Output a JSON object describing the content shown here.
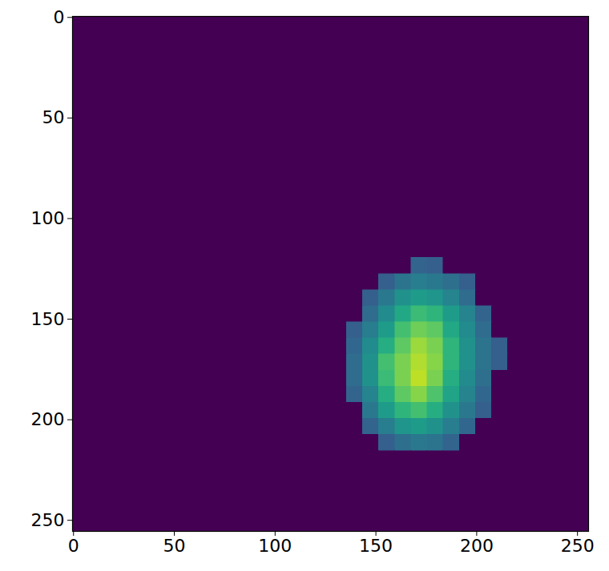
{
  "chart_data": {
    "type": "heatmap",
    "color": "viridis",
    "color_range": [
      0,
      1
    ],
    "grid": false,
    "xlim": [
      -0.5,
      255.5
    ],
    "ylim": [
      255.5,
      -0.5
    ],
    "xticks": [
      0,
      50,
      100,
      150,
      200,
      250
    ],
    "yticks": [
      0,
      50,
      100,
      150,
      200,
      250
    ],
    "cell_size": 8,
    "cells": [
      [
        0,
        0,
        0,
        0,
        0,
        0,
        0,
        0,
        0,
        0,
        0,
        0,
        0,
        0,
        0,
        0,
        0,
        0,
        0,
        0,
        0,
        0,
        0,
        0,
        0,
        0,
        0,
        0,
        0,
        0,
        0,
        0
      ],
      [
        0,
        0,
        0,
        0,
        0,
        0,
        0,
        0,
        0,
        0,
        0,
        0,
        0,
        0,
        0,
        0,
        0,
        0,
        0,
        0,
        0,
        0,
        0,
        0,
        0,
        0,
        0,
        0,
        0,
        0,
        0,
        0
      ],
      [
        0,
        0,
        0,
        0,
        0,
        0,
        0,
        0,
        0,
        0,
        0,
        0,
        0,
        0,
        0,
        0,
        0,
        0,
        0,
        0,
        0,
        0,
        0,
        0,
        0,
        0,
        0,
        0,
        0,
        0,
        0,
        0
      ],
      [
        0,
        0,
        0,
        0,
        0,
        0,
        0,
        0,
        0,
        0,
        0,
        0,
        0,
        0,
        0,
        0,
        0,
        0,
        0,
        0,
        0,
        0,
        0,
        0,
        0,
        0,
        0,
        0,
        0,
        0,
        0,
        0
      ],
      [
        0,
        0,
        0,
        0,
        0,
        0,
        0,
        0,
        0,
        0,
        0,
        0,
        0,
        0,
        0,
        0,
        0,
        0,
        0,
        0,
        0,
        0,
        0,
        0,
        0,
        0,
        0,
        0,
        0,
        0,
        0,
        0
      ],
      [
        0,
        0,
        0,
        0,
        0,
        0,
        0,
        0,
        0,
        0,
        0,
        0,
        0,
        0,
        0,
        0,
        0,
        0,
        0,
        0,
        0,
        0,
        0,
        0,
        0,
        0,
        0,
        0,
        0,
        0,
        0,
        0
      ],
      [
        0,
        0,
        0,
        0,
        0,
        0,
        0,
        0,
        0,
        0,
        0,
        0,
        0,
        0,
        0,
        0,
        0,
        0,
        0,
        0,
        0,
        0,
        0,
        0,
        0,
        0,
        0,
        0,
        0,
        0,
        0,
        0
      ],
      [
        0,
        0,
        0,
        0,
        0,
        0,
        0,
        0,
        0,
        0,
        0,
        0,
        0,
        0,
        0,
        0,
        0,
        0,
        0,
        0,
        0,
        0,
        0,
        0,
        0,
        0,
        0,
        0,
        0,
        0,
        0,
        0
      ],
      [
        0,
        0,
        0,
        0,
        0,
        0,
        0,
        0,
        0,
        0,
        0,
        0,
        0,
        0,
        0,
        0,
        0,
        0,
        0,
        0,
        0,
        0,
        0,
        0,
        0,
        0,
        0,
        0,
        0,
        0,
        0,
        0
      ],
      [
        0,
        0,
        0,
        0,
        0,
        0,
        0,
        0,
        0,
        0,
        0,
        0,
        0,
        0,
        0,
        0,
        0,
        0,
        0,
        0,
        0,
        0,
        0,
        0,
        0,
        0,
        0,
        0,
        0,
        0,
        0,
        0
      ],
      [
        0,
        0,
        0,
        0,
        0,
        0,
        0,
        0,
        0,
        0,
        0,
        0,
        0,
        0,
        0,
        0,
        0,
        0,
        0,
        0,
        0,
        0,
        0,
        0,
        0,
        0,
        0,
        0,
        0,
        0,
        0,
        0
      ],
      [
        0,
        0,
        0,
        0,
        0,
        0,
        0,
        0,
        0,
        0,
        0,
        0,
        0,
        0,
        0,
        0,
        0,
        0,
        0,
        0,
        0,
        0,
        0,
        0,
        0,
        0,
        0,
        0,
        0,
        0,
        0,
        0
      ],
      [
        0,
        0,
        0,
        0,
        0,
        0,
        0,
        0,
        0,
        0,
        0,
        0,
        0,
        0,
        0,
        0,
        0,
        0,
        0,
        0,
        0,
        0,
        0,
        0,
        0,
        0,
        0,
        0,
        0,
        0,
        0,
        0
      ],
      [
        0,
        0,
        0,
        0,
        0,
        0,
        0,
        0,
        0,
        0,
        0,
        0,
        0,
        0,
        0,
        0,
        0,
        0,
        0,
        0,
        0,
        0,
        0,
        0,
        0,
        0,
        0,
        0,
        0,
        0,
        0,
        0
      ],
      [
        0,
        0,
        0,
        0,
        0,
        0,
        0,
        0,
        0,
        0,
        0,
        0,
        0,
        0,
        0,
        0,
        0,
        0,
        0,
        0,
        0,
        0,
        0,
        0,
        0,
        0,
        0,
        0,
        0,
        0,
        0,
        0
      ],
      [
        0,
        0,
        0,
        0,
        0,
        0,
        0,
        0,
        0,
        0,
        0,
        0,
        0,
        0,
        0,
        0,
        0,
        0,
        0,
        0,
        0,
        0.32,
        0.3,
        0,
        0,
        0,
        0,
        0,
        0,
        0,
        0,
        0
      ],
      [
        0,
        0,
        0,
        0,
        0,
        0,
        0,
        0,
        0,
        0,
        0,
        0,
        0,
        0,
        0,
        0,
        0,
        0,
        0,
        0.3,
        0.38,
        0.42,
        0.4,
        0.36,
        0.3,
        0,
        0,
        0,
        0,
        0,
        0,
        0
      ],
      [
        0,
        0,
        0,
        0,
        0,
        0,
        0,
        0,
        0,
        0,
        0,
        0,
        0,
        0,
        0,
        0,
        0,
        0,
        0.3,
        0.4,
        0.5,
        0.55,
        0.52,
        0.45,
        0.35,
        0,
        0,
        0,
        0,
        0,
        0,
        0
      ],
      [
        0,
        0,
        0,
        0,
        0,
        0,
        0,
        0,
        0,
        0,
        0,
        0,
        0,
        0,
        0,
        0,
        0,
        0,
        0.35,
        0.48,
        0.6,
        0.68,
        0.65,
        0.55,
        0.45,
        0.32,
        0,
        0,
        0,
        0,
        0,
        0
      ],
      [
        0,
        0,
        0,
        0,
        0,
        0,
        0,
        0,
        0,
        0,
        0,
        0,
        0,
        0,
        0,
        0,
        0,
        0.3,
        0.42,
        0.55,
        0.7,
        0.78,
        0.75,
        0.6,
        0.48,
        0.35,
        0,
        0,
        0,
        0,
        0,
        0
      ],
      [
        0,
        0,
        0,
        0,
        0,
        0,
        0,
        0,
        0,
        0,
        0,
        0,
        0,
        0,
        0,
        0,
        0,
        0.33,
        0.48,
        0.62,
        0.75,
        0.85,
        0.8,
        0.65,
        0.5,
        0.38,
        0.3,
        0,
        0,
        0,
        0,
        0
      ],
      [
        0,
        0,
        0,
        0,
        0,
        0,
        0,
        0,
        0,
        0,
        0,
        0,
        0,
        0,
        0,
        0,
        0,
        0.35,
        0.5,
        0.7,
        0.8,
        0.88,
        0.82,
        0.65,
        0.5,
        0.38,
        0.3,
        0,
        0,
        0,
        0,
        0
      ],
      [
        0,
        0,
        0,
        0,
        0,
        0,
        0,
        0,
        0,
        0,
        0,
        0,
        0,
        0,
        0,
        0,
        0,
        0.35,
        0.5,
        0.68,
        0.8,
        0.9,
        0.8,
        0.62,
        0.48,
        0.36,
        0,
        0,
        0,
        0,
        0,
        0
      ],
      [
        0,
        0,
        0,
        0,
        0,
        0,
        0,
        0,
        0,
        0,
        0,
        0,
        0,
        0,
        0,
        0,
        0,
        0.32,
        0.45,
        0.62,
        0.75,
        0.82,
        0.72,
        0.58,
        0.45,
        0.33,
        0,
        0,
        0,
        0,
        0,
        0
      ],
      [
        0,
        0,
        0,
        0,
        0,
        0,
        0,
        0,
        0,
        0,
        0,
        0,
        0,
        0,
        0,
        0,
        0,
        0,
        0.4,
        0.55,
        0.65,
        0.7,
        0.62,
        0.5,
        0.4,
        0.3,
        0,
        0,
        0,
        0,
        0,
        0
      ],
      [
        0,
        0,
        0,
        0,
        0,
        0,
        0,
        0,
        0,
        0,
        0,
        0,
        0,
        0,
        0,
        0,
        0,
        0,
        0.32,
        0.42,
        0.52,
        0.55,
        0.5,
        0.42,
        0.33,
        0,
        0,
        0,
        0,
        0,
        0,
        0
      ],
      [
        0,
        0,
        0,
        0,
        0,
        0,
        0,
        0,
        0,
        0,
        0,
        0,
        0,
        0,
        0,
        0,
        0,
        0,
        0,
        0.3,
        0.36,
        0.4,
        0.38,
        0.32,
        0,
        0,
        0,
        0,
        0,
        0,
        0,
        0
      ],
      [
        0,
        0,
        0,
        0,
        0,
        0,
        0,
        0,
        0,
        0,
        0,
        0,
        0,
        0,
        0,
        0,
        0,
        0,
        0,
        0,
        0,
        0,
        0,
        0,
        0,
        0,
        0,
        0,
        0,
        0,
        0,
        0
      ],
      [
        0,
        0,
        0,
        0,
        0,
        0,
        0,
        0,
        0,
        0,
        0,
        0,
        0,
        0,
        0,
        0,
        0,
        0,
        0,
        0,
        0,
        0,
        0,
        0,
        0,
        0,
        0,
        0,
        0,
        0,
        0,
        0
      ],
      [
        0,
        0,
        0,
        0,
        0,
        0,
        0,
        0,
        0,
        0,
        0,
        0,
        0,
        0,
        0,
        0,
        0,
        0,
        0,
        0,
        0,
        0,
        0,
        0,
        0,
        0,
        0,
        0,
        0,
        0,
        0,
        0
      ],
      [
        0,
        0,
        0,
        0,
        0,
        0,
        0,
        0,
        0,
        0,
        0,
        0,
        0,
        0,
        0,
        0,
        0,
        0,
        0,
        0,
        0,
        0,
        0,
        0,
        0,
        0,
        0,
        0,
        0,
        0,
        0,
        0
      ],
      [
        0,
        0,
        0,
        0,
        0,
        0,
        0,
        0,
        0,
        0,
        0,
        0,
        0,
        0,
        0,
        0,
        0,
        0,
        0,
        0,
        0,
        0,
        0,
        0,
        0,
        0,
        0,
        0,
        0,
        0,
        0,
        0
      ]
    ]
  }
}
